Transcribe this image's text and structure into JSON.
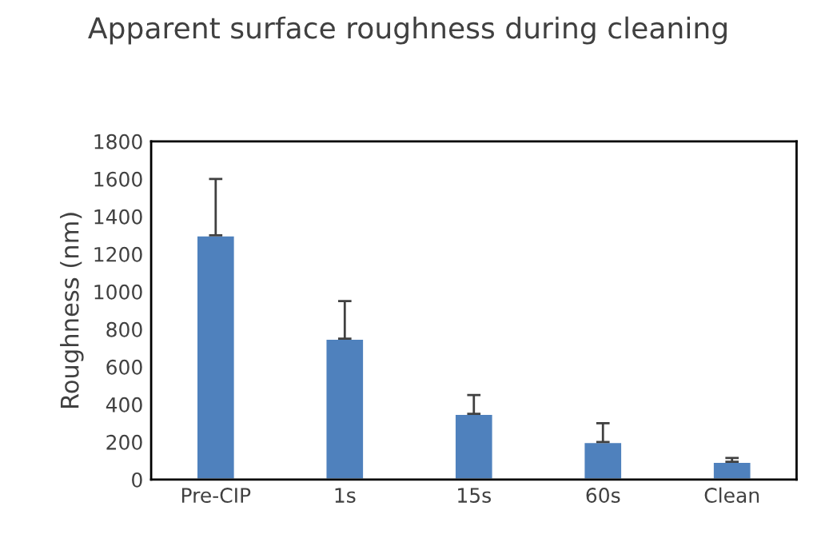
{
  "chart_data": {
    "type": "bar",
    "title": "Apparent surface roughness during cleaning",
    "ylabel": "Roughness (nm)",
    "categories": [
      "Pre-CIP",
      "1s",
      "15s",
      "60s",
      "Clean"
    ],
    "values": [
      1300,
      750,
      350,
      200,
      95
    ],
    "errors": [
      [
        1300,
        1600
      ],
      [
        750,
        950
      ],
      [
        350,
        450
      ],
      [
        200,
        300
      ],
      [
        95,
        115
      ]
    ],
    "color": "#4f81bd",
    "ylim": [
      0,
      1800
    ],
    "yticks": [
      0,
      200,
      400,
      600,
      800,
      1000,
      1200,
      1400,
      1600,
      1800
    ],
    "grid": false,
    "legend": false
  }
}
